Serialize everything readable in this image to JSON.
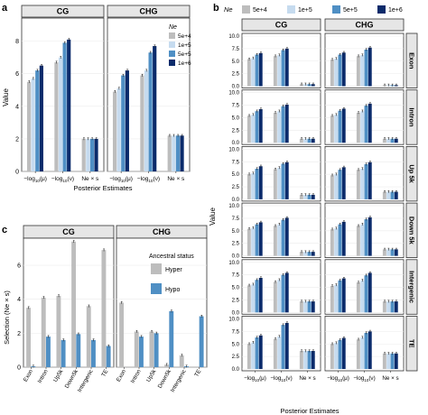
{
  "panels": {
    "a": "a",
    "b": "b",
    "c": "c"
  },
  "colors": {
    "ne_5e4": "#bdbdbd",
    "ne_1e5": "#c6dbef",
    "ne_5e5": "#4f8fc4",
    "ne_1e6": "#0b2b6b",
    "hyper": "#bdbdbd",
    "hypo": "#4f8fc4",
    "strip": "#e6e6e6",
    "grid": "#ebebeb"
  },
  "chart_data": [
    {
      "id": "a",
      "type": "bar",
      "facets": [
        "CG",
        "CHG"
      ],
      "categories": [
        "−log10(μ)",
        "−log10(ν)",
        "Ne × s"
      ],
      "tick_labels": [
        {
          "pre": "−log",
          "sub": "10",
          "post": "(μ)"
        },
        {
          "pre": "−log",
          "sub": "10",
          "post": "(ν)"
        },
        {
          "pre": "Ne × s",
          "sub": "",
          "post": ""
        }
      ],
      "xlabel": "Posterior Estimates",
      "ylabel": "Value",
      "ylim": [
        0,
        8.7
      ],
      "yticks": [
        0,
        2,
        4,
        6,
        8
      ],
      "legend": {
        "title": "Ne",
        "position": "top-right-inside",
        "entries": [
          "5e+4",
          "1e+5",
          "5e+5",
          "1e+6"
        ]
      },
      "series": [
        {
          "name": "5e+4",
          "values": {
            "CG": [
              5.5,
              6.7,
              2.0
            ],
            "CHG": [
              4.9,
              5.9,
              2.2
            ]
          }
        },
        {
          "name": "1e+5",
          "values": {
            "CG": [
              5.7,
              7.0,
              2.0
            ],
            "CHG": [
              5.1,
              6.2,
              2.2
            ]
          }
        },
        {
          "name": "5e+5",
          "values": {
            "CG": [
              6.2,
              7.9,
              2.0
            ],
            "CHG": [
              5.9,
              7.3,
              2.2
            ]
          }
        },
        {
          "name": "1e+6",
          "values": {
            "CG": [
              6.5,
              8.1,
              2.0
            ],
            "CHG": [
              6.2,
              7.7,
              2.2
            ]
          }
        }
      ]
    },
    {
      "id": "b",
      "type": "bar",
      "col_facets": [
        "CG",
        "CHG"
      ],
      "row_facets": [
        "Exon",
        "Intron",
        "Up 5k",
        "Down 5k",
        "Intergenic",
        "TE"
      ],
      "categories": [
        "−log10(μ)",
        "−log10(ν)",
        "Ne × s"
      ],
      "xlabel": "Posterior Estimates",
      "ylabel": "Value",
      "ylim": [
        0,
        10
      ],
      "yticks": [
        0,
        2.5,
        5,
        7.5,
        10
      ],
      "ytick_labels": [
        "0.0",
        "2.5",
        "5.0",
        "7.5",
        "10.0"
      ],
      "legend": {
        "title": "Ne",
        "position": "top",
        "entries": [
          "5e+4",
          "1e+5",
          "5e+5",
          "1e+6"
        ]
      },
      "series_names": [
        "5e+4",
        "1e+5",
        "5e+5",
        "1e+6"
      ],
      "data": {
        "Exon": {
          "CG": [
            [
              5.4,
              5.6,
              6.3,
              6.6
            ],
            [
              6.0,
              6.2,
              7.2,
              7.5
            ],
            [
              0.4,
              0.4,
              0.4,
              0.4
            ]
          ],
          "CHG": [
            [
              5.3,
              5.5,
              6.3,
              6.7
            ],
            [
              6.0,
              6.2,
              7.3,
              7.7
            ],
            [
              0.2,
              0.2,
              0.2,
              0.2
            ]
          ]
        },
        "Intron": {
          "CG": [
            [
              5.4,
              5.6,
              6.3,
              6.7
            ],
            [
              6.0,
              6.3,
              7.3,
              7.6
            ],
            [
              0.8,
              0.8,
              0.8,
              0.8
            ]
          ],
          "CHG": [
            [
              5.4,
              5.6,
              6.4,
              6.8
            ],
            [
              6.0,
              6.3,
              7.4,
              7.8
            ],
            [
              0.8,
              0.8,
              0.8,
              0.8
            ]
          ]
        },
        "Up 5k": {
          "CG": [
            [
              5.0,
              5.2,
              6.1,
              6.6
            ],
            [
              6.0,
              6.3,
              7.1,
              7.4
            ],
            [
              0.9,
              0.9,
              0.9,
              0.9
            ]
          ],
          "CHG": [
            [
              4.8,
              5.0,
              5.9,
              6.4
            ],
            [
              5.9,
              6.1,
              7.0,
              7.4
            ],
            [
              1.5,
              1.5,
              1.5,
              1.5
            ]
          ]
        },
        "Down 5k": {
          "CG": [
            [
              5.4,
              5.6,
              6.3,
              6.7
            ],
            [
              6.0,
              6.3,
              7.2,
              7.6
            ],
            [
              0.8,
              0.8,
              0.8,
              0.8
            ]
          ],
          "CHG": [
            [
              5.3,
              5.5,
              6.3,
              6.8
            ],
            [
              6.0,
              6.3,
              7.3,
              7.7
            ],
            [
              1.3,
              1.3,
              1.3,
              1.3
            ]
          ]
        },
        "Intergenic": {
          "CG": [
            [
              5.4,
              5.6,
              6.5,
              6.9
            ],
            [
              6.1,
              6.5,
              7.5,
              7.9
            ],
            [
              2.2,
              2.2,
              2.2,
              2.2
            ]
          ],
          "CHG": [
            [
              5.3,
              5.5,
              6.4,
              6.8
            ],
            [
              6.0,
              6.4,
              7.4,
              7.9
            ],
            [
              2.2,
              2.2,
              2.2,
              2.2
            ]
          ]
        },
        "TE": {
          "CG": [
            [
              5.0,
              5.3,
              6.3,
              6.7
            ],
            [
              6.0,
              6.5,
              8.8,
              9.2
            ],
            [
              3.6,
              3.6,
              3.6,
              3.6
            ]
          ],
          "CHG": [
            [
              5.0,
              5.2,
              5.8,
              6.2
            ],
            [
              5.9,
              6.3,
              7.2,
              7.5
            ],
            [
              3.1,
              3.1,
              3.1,
              3.1
            ]
          ]
        }
      }
    },
    {
      "id": "c",
      "type": "bar",
      "facets": [
        "CG",
        "CHG"
      ],
      "categories": [
        "Exon",
        "Intron",
        "Up5k",
        "Down5k",
        "Intergenic",
        "TE"
      ],
      "ylabel": "Selection (Ne × s)",
      "ylim": [
        0,
        7.6
      ],
      "yticks": [
        0,
        2,
        4,
        6
      ],
      "legend": {
        "title": "Ancestral status",
        "position": "right-inside",
        "entries": [
          "Hyper",
          "Hypo"
        ]
      },
      "series": [
        {
          "name": "Hyper",
          "values": {
            "CG": [
              3.5,
              4.1,
              4.2,
              7.4,
              3.6,
              6.9
            ],
            "CHG": [
              3.8,
              2.1,
              2.1,
              0.15,
              0.7,
              0.0
            ]
          }
        },
        {
          "name": "Hypo",
          "values": {
            "CG": [
              0.05,
              1.8,
              1.6,
              1.95,
              1.6,
              1.25
            ],
            "CHG": [
              0.0,
              1.8,
              2.0,
              3.3,
              0.05,
              3.0
            ]
          }
        }
      ]
    }
  ]
}
